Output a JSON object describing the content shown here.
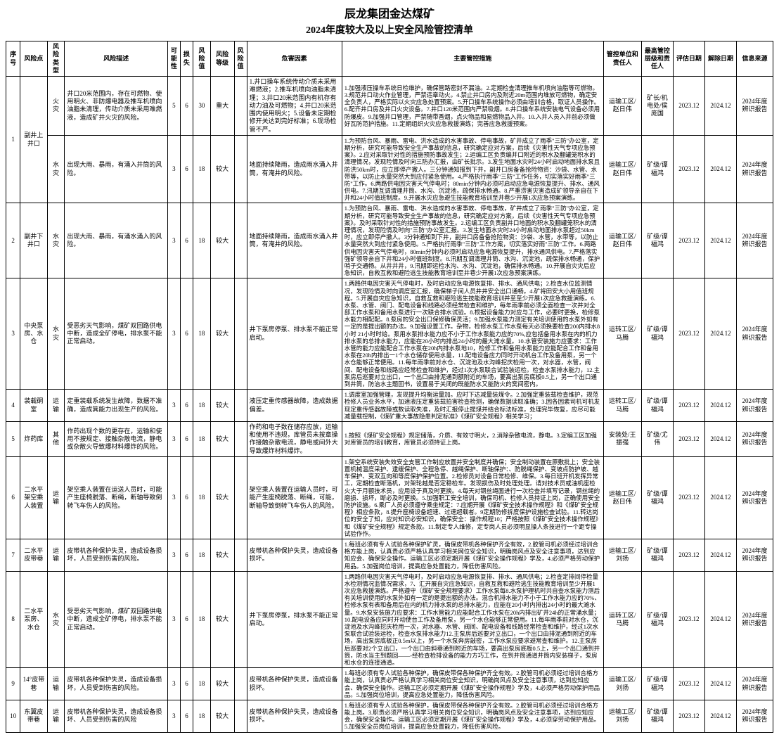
{
  "header": {
    "title": "辰龙集团金达煤矿",
    "subtitle": "2024年度较大及以上安全风险管控清单"
  },
  "columns": {
    "seq": "序号",
    "point": "风险点",
    "type": "风险类型",
    "desc": "风险描述",
    "poss": "可能性",
    "loss": "损失",
    "val": "风险值",
    "level": "风险等级",
    "val2": "风险值",
    "factors": "危害因素",
    "measures": "主要管控措施",
    "unit": "管控单位和责任人",
    "mgr": "最高管控层级和责任人",
    "date1": "评估日期",
    "date2": "解除日期",
    "src": "信息来源"
  },
  "rows": [
    {
      "seq": "1",
      "point": "副井上井口",
      "spanPoint": 2,
      "type": "火灾",
      "desc": "井口20米范围内，存在可燃物、使用明火、非防爆电器及推车机喷向油脂未清理，传动介质未采用难燃液，造成矿井火灾的风险。",
      "poss": "5",
      "loss": "6",
      "val": "30",
      "level": "重大",
      "val2": "",
      "factors": "1.井口操车系统传动介质未采用难燃液；2.推车机喷向油脂未清理；3.井口20米范围内有机存有动力油及可燃物；4.井口20米范围内使用明火；5.设备未定期检修开关达到完好标准；6.现场检管不严。",
      "measures": "1.加强液压操车系统日检维护，确保管路密封不漏油。2.定期检查清理推车机喷向油脂等可燃物。3.规范井口动火作业管理，严禁违章动火。4.禁止井口房内及附近20m范围内堆放可燃物，确定安全负责人，严格实际以火灾应急处置预案。5.开口操车系统操作必须由培训合格，取证人员操作。6.配齐井口房及井口火灾设备。7.井口120米范围内严禁吸烟。8.井口操车系统安装电气设备必须用防爆皮。9.加强井口管理，严禁随带香烟，点火物品和易燃物品入井。10.入井人员入井前必须做好瓦防范护措施。11.定期组织火灾应急救援演练；完善应急救援预案。",
      "unit": "运输工区/赵日伟",
      "mgr": "矿长/机电处/侯庞国",
      "date1": "2023.12",
      "date2": "2024.12",
      "src": "2024年度辨识报告"
    },
    {
      "type": "水灾",
      "desc": "出现大雨、暴雨，有涌入井筒的风险。",
      "poss": "3",
      "loss": "6",
      "val": "18",
      "level": "较大",
      "val2": "",
      "factors": "地面持续降雨，造成雨水涌入井筒，有淹井的风险。",
      "measures": "1.为预防台风、暴雨、雷电、洪水造成的水害事故、停电事故，矿井成立了雨季\"三防\"办公室，定期分析，研究可能导致安全生产事故的信息，研究确定应对方案，后续《灾害性天气专项应急预案》。2.应对采取针对性的措施预防事故发生；2.运编工区负责编并口附近的积水及翻罐笼积水的清理情况，发现险情及时向三防办汇报，由矿长批示。3.发生地面水灾时24小时启动地面排水泵且防洪50km时，应立即停产撤人。三分钟通知报到下井，副井口房备备抢险物资：沙袋、水管、水带等，以防止水量突然大到应付紧急使用。4.严格执行雨季\"三防\"工作任务，切实落实好雨季\"三防\"工作。6.两路供电因灾害天气停电时；80min分钟内必须时启动应急电源恢复提升、排水、通风供电。7.汛期互调清理井筒、水沟、沉淀池，疏保排水畅通。8.严重涝害灾害造成矿领导亲自在下井和24小时值班制度。9.开展水灾应急避生技能教育培训至井巷少开展1次应急预案演练。",
      "unit": "运输工区/赵日伟",
      "mgr": "矿级/谭福鸿",
      "date1": "2023.12",
      "date2": "2024.12",
      "src": "2024年度辨识报告"
    },
    {
      "seq": "2",
      "point": "副井下井口",
      "type": "水灾",
      "desc": "出现大雨、暴雨，有涌水涌入的风险。",
      "poss": "3",
      "loss": "6",
      "val": "18",
      "level": "较大",
      "val2": "",
      "factors": "地面持续降雨，造成雨水涌入井筒，有淹井的风险。",
      "measures": "1.为预防台风、暴雨、雷电、洪水造成的水害事故、停电事故，矿井成立了雨季\"三防\"办公室，定期分析，研究可能导致安全生产事故的信息，研究确定应对方案，后续《灾害性天气专项应急预案》。及时采取针对性的措施预防事故发生。2.运编工区负责副井口地面的积水及翻罐笼积水的清理情况，发现险情及时向\"三防\"办公室汇报。3.发生地面水灾时24小时启动地面排水泵超过50km时，应立即停产撤人。3分钟通知到下井，副井口房备备抢险物资：沙袋、水管，水带等，以防止水量突然大到应付紧急使用。5.严格执行雨季\"三防\"工作方案，切实落实好雨\"三防\"工作。6.两路供电因灾害天气停电时，80min分钟内必须时启动应急电源恢复提升，排水通风供电。7.严格落实强矿领导亲自下井和24小时值班制度。8.汛期互调清理井筒、水沟、沉淀池，疏保排水畅通，保护哨子交通畅。从井井井，9.汛期即运检水沟、水沟、沉淀池，确保排水畅通。10.开展自灾灾后应急知识，自救互救和避险逃生技能教育培训至井巷少开展1次应急预案演练。",
      "unit": "运输工区/赵日伟",
      "mgr": "矿级/谭福鸿",
      "date1": "2023.12",
      "date2": "2024.12",
      "src": "2024年度辨识报告"
    },
    {
      "seq": "3",
      "point": "中央泵房、水仓",
      "type": "水灾",
      "desc": "受恶劣天气影响，煤矿双回路供电中断，造成全矿停电，排水泵不能正常启动。",
      "poss": "3",
      "loss": "6",
      "val": "18",
      "level": "较大",
      "val2": "",
      "factors": "井下泵房停泵、排水泵不能正常启动。",
      "measures": "1.两路供电因灾害天气停电时，及时启动应急电源恢复排、排水、通风供电；2.检查水位监测情况，发现险情及时向调度室汇报，确保梯子间人员井井安全出口通畅。4.矿将田安大小用值班规程。5.开展自灾应急知识，自救互救和避险逃生技能教育培训并至至少开展1次应急救援演练。6.水泵、水管、阀门、配电设备和线路必须经常检查和维护，每年雨季前必须全面检查一次并对全部工作水泵和备用水泵进行一次联合排水试验。8.根据设备能力对应与工作，必要时更换，检修泵水能力相配配。8.泵房的安全出口保修确保灵活；9.加强水泵能力测定有关培训使用的水泵外如有一定的是提出额的办法。9.加强设置工作。杂物，检修水泵工作水泵每天必须换要检查200内排水8小时 21小时时给。泵用水泵排水能力应不小于工作水泵能力应的70%,应包括备用水泵在内的机力排水泵的总排水能力，应能在20小时内排出24小时的最大滩水量。10.水管安装施力应要求：工作水管的能力应能配合工作水泵在20h内排水泵地10，检修工作和备用水泵能力应能配合工作和备用水泵在20h内排出一1个水仓储存使用水量，11.配电设备应力同时开动机台工作及备用泵，另一个水仓能够正常便用。11.每年雨季前对水仓、沉淀池及水沟峰挖庆检用一次，对水器，水管，阀间、配电设备和线路应经常检查和维护，经过1次水泵联合试验装运检。检查水泵排水能力，12.主泵房后巡要对立出口，一个出口由排泥通到额附近的车场，要高出泵房底板0.5上，另一个出口通到井筒，防治水主题回书，设置易于关闭的既能防水又能防火的窝间密内。",
      "unit": "运转工区/马腾",
      "mgr": "矿级/谭福鸿",
      "date1": "2023.12",
      "date2": "2024.12",
      "src": "2024年度辨识报告"
    },
    {
      "seq": "4",
      "point": "装载硐室",
      "type": "运输",
      "desc": "定重装载系统发生故障，数据不准确，造成箕能力出现生产的风险。",
      "poss": "3",
      "loss": "6",
      "val": "18",
      "level": "较大",
      "val2": "",
      "factors": "液压定重传感器故障，造成数据偏差。",
      "measures": "1.调度室加强管理，发现提升均衡运量加。应时下达减量装煤令。2.加强定重装载检查维护，规范检修人员业务水平，加速液压定重装载拍害检查检测，确保数据读取准确；3.因各因素司机可机发现定重传感器故障或数读取失准，及时汇报停止提煤并结合标法标准，处理完毕恢复，应尽可能减量载控制，《煤矿重大事故隐患判定标准》《煤矿安全规程》相关学习；",
      "unit": "运转工区/马腾",
      "mgr": "矿级/谭福鸿",
      "date1": "2023.12",
      "date2": "2024.12",
      "src": "2024年度辨识报告"
    },
    {
      "seq": "5",
      "point": "炸药库",
      "type": "其他",
      "desc": "作药出现个数的更存在，运输和使用不按规定、接触杂散电流，静电或杂散火导致爆材料爆炸的风险。",
      "poss": "3",
      "loss": "6",
      "val": "18",
      "level": "较大",
      "val2": "",
      "factors": "作药和电子数在储存应放，运输和使用不违规，库管员未按章操作接触杂散电流，静电或间外大导致爆炸材料爆炸。",
      "measures": "1.按照《煤矿安全规程》规定储落，介质、有效寸明火，2.消除杂散电流，静电。3.定编工区加强对库管员的培训教育，库管员必须持证上岗。",
      "unit": "安装处/王振强",
      "mgr": "矿级/尤伟",
      "date1": "2023.12",
      "date2": "2024.12",
      "src": "2024年度辨识报告"
    },
    {
      "seq": "6",
      "point": "二水平架空乘人装置",
      "type": "运输",
      "desc": "架空乘人装置在运送人员时，可能产生座椅脱落、断绳，断轴导致倒转飞车伤人的风险。",
      "poss": "3",
      "loss": "6",
      "val": "18",
      "level": "较大",
      "val2": "",
      "factors": "架空乘人装置在运输人员时，可能产生座椅脱落、断绳，可能，断轴导致倒转飞车伤人的风险。",
      "measures": "1.架空系统安装失效安全支管工作制应放置并安全制度并确保；安全制动装置在原敷批上；安全装置机械温度采护、逮缓保护、全程急停、越绳保护、断轴保护：、防脱绳保护、变坡点防护坡、越车保护、变双互向和等度保护保护位置。2.检修员对设备日常检修、维保。3.每日班开机发挥异常工，定期检查断落机，对架轮越是否定稳检车。发现损伤及时处理处理。请对技术员或油机座检火大于月额技术员，应用设于真及时更换。4.每天对钢丝绳面进行一次检查并填写记录，钢丝绳的磨损、损坏，断必及时更换。5.加强职工安全培训，确保司机、检修人员持证上岗，正确使用安全防护设施。6.乘厂人员必须遵守乘坐规定：7.应期开展《煤矿安全技术操作规程》和《煤矿安全规程》相应条款，8.提升座椅设备超速、过速超载者。9定期防修拆度保护设施检查试验。11.转达岗位的安全了知，应对知识必安知识，确保安全：操作规程10；严格按照《煤矿安全技术操作规程》和《煤矿安全规程》规定条款。11.制定专人维修，定专岗人员必须明显操人条技进行一个距专操试验作作。",
      "unit": "运输工区/赵日伟",
      "mgr": "矿级/谭福鸿",
      "date1": "2023.12",
      "date2": "2024.12",
      "src": "2024年度辨识报告"
    },
    {
      "seq": "7",
      "point": "二水平皮带巷",
      "type": "运输",
      "desc": "皮带机各种保护失灵，造成设备损坏，人员受到伤害的风险。",
      "poss": "3",
      "loss": "6",
      "val": "18",
      "level": "较大",
      "val2": "",
      "factors": "皮带机各种保护失灵，造成设备损坏。",
      "measures": "1.每班必须有专人试验各种保护矿灵，确保皮带机各种保护齐全有效，2.胶管司机必须经过培训合格方能上岗，认真责必须严格认真学习相关网位安全知识，明确岗风点及安全注意事项，达到应知应会、确保安全操作。运输工区必须定期开展《煤矿安全操作规程》学及，4.必须严格劳动保护用品。5.加强岗位培训，提高应急处置能力，降低伤害风险。",
      "unit": "运输工区/刘扬",
      "mgr": "矿级/谭福鸿",
      "date1": "2023.12",
      "date2": "2024.12",
      "src": "2024年度辨识报告"
    },
    {
      "seq": "8",
      "point": "二水平泵房、水仓",
      "type": "水灾",
      "desc": "受恶劣天气影响，煤矿双回路供电中断，造成全矿停电，排水泵不能正常启动。",
      "poss": "3",
      "loss": "6",
      "val": "18",
      "level": "较大",
      "val2": "",
      "factors": "井下泵房停泵，排水泵不能正常启动。",
      "measures": "1.两路供电因灾害天气停电时，及时启动应急电源恢复排、排水、通风供电；2.检查定排间停检量水检测情况监情况需求，7、汇开展自灾应急知识，自救互救和避险逃生技能教育培训至少开展1次应急救援演练。严格遵守（煤矿安全规程要求）工作水泵每8.水泵护理机时共自查水泵能力测后有关培训使用的水泵外如有一定的是提出额的办法。混合机排水能力不小于工作水能力应的70%、检修水泵有表和备用后在内的机力排水泵的总排水能力，应能在20小时内排出24小时的最大滩水量。9.水泵安装施力应要求：工作水管能力应能配合工作水泵在20h内排出矿井24h的正常涌水量；10.配电设备应同时开动使台工作及备用泵，另一个水仓能够正常便用。11.每年雨季前对水仓，沉淀池及水沟峰挖庆检用一次，对水器、水管、阀间、配电设备和线路经常检查和维护，经过1次水泵联合试验装运检，检查水泵排水能力12.主泵房后巡要对立出口，一个出口由排泥通到附近的车场，高出泵房底板正0.5m以上，另一个水泵奔房敲密，工作水泵应要求避常查和维护。12.主泵房后巡要对2个立出口，一个出口由斜巷通到附近的车场，要高出泵房底板0.5上，另一个出口通到井筒，防水当主到题回——-经检查检排设备的能力方巧工作，在到井筒通道井筒内安装梯子，泵房和水仓的连接通道。",
      "unit": "运转工区/马腾",
      "mgr": "矿级/谭福鸿",
      "date1": "2023.12",
      "date2": "2024.12",
      "src": "2024年度辨识报告"
    },
    {
      "seq": "9",
      "point": "14°皮带巷",
      "type": "运输",
      "desc": "皮带机各种保护失灵，造成设备损坏，人员受到伤害的风险。",
      "poss": "3",
      "loss": "6",
      "val": "18",
      "level": "较大",
      "val2": "",
      "factors": "皮带机各种保护失灵，造成设备损坏。",
      "measures": "1.每班必须有专人试验各种保护，确保皮带保各种保护齐全有效。2.胶管司机必须经过培训合格方能上岗，认真责必严格认真学习相关岗位安全知识，明确岗风点及安全注意事项，达到应知应会、确保安全操作。运输工区必须定期开展《煤矿安全操作规程》学及，4.必须严格劳动保护用品品。5.加强岗位培训，提高应急处置能力，降低伤害风险。",
      "unit": "运输工区/刘扬",
      "mgr": "矿级/谭福鸿",
      "date1": "2023.12",
      "date2": "2024.12",
      "src": "2024年度辨识报告"
    },
    {
      "seq": "10",
      "point": "东翼皮带巷",
      "type": "运输",
      "desc": "皮带机各种保护失灵，造成设备损坏、人员受到伤害的风险",
      "poss": "3",
      "loss": "6",
      "val": "18",
      "level": "较大",
      "val2": "",
      "factors": "皮带机各种保护失灵，造成设备损坏。",
      "measures": "1.每班必须有专人试验各种保护，确保皮带保各种保护齐全有效。2.胶管司机必须经过培训合格方能上岗。3.职责必须严格认真学习相关岗位安全知识，明确岗风点及安全注意事项，达到应知应会，确保安全操作。运输工区必须定期开展《煤矿安全操作规程》学及，4.必须穿劳动保护用品。5.加强安全员岗位培训，提高应急处置能力，降低伤害风险。",
      "unit": "运输工区/刘扬",
      "mgr": "矿级/谭福鸿",
      "date1": "2023.12",
      "date2": "2024.12",
      "src": "2024年度辨识报告"
    }
  ]
}
